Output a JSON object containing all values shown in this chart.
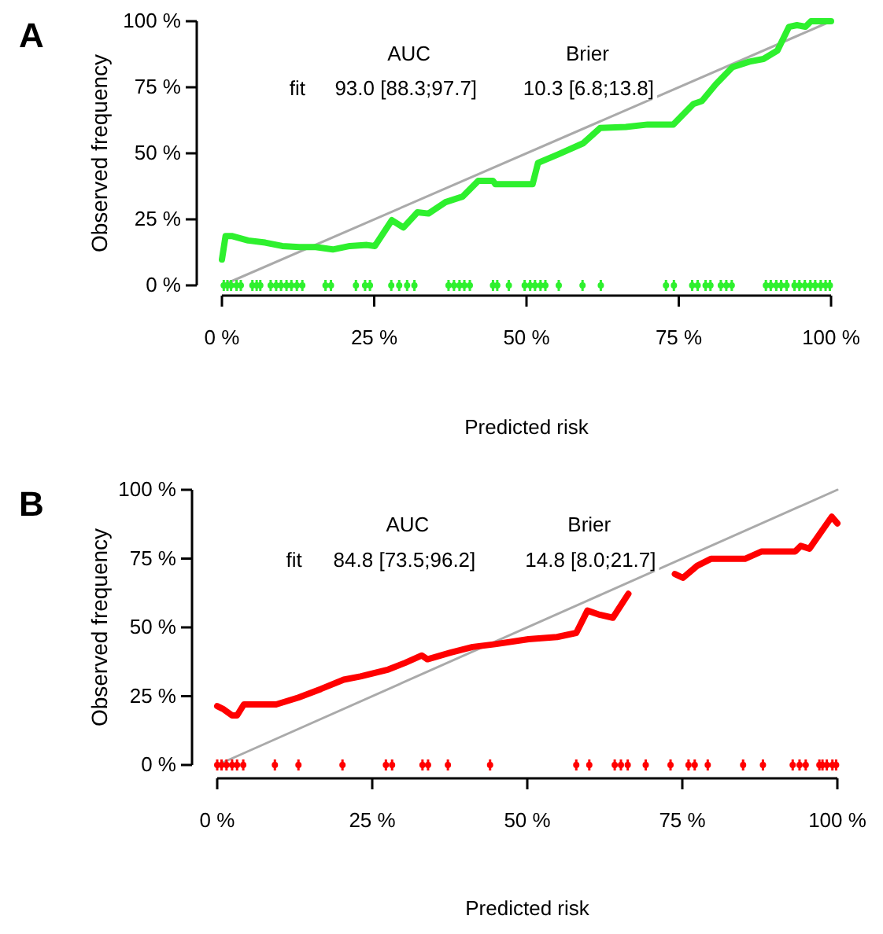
{
  "chart_data": [
    {
      "type": "line",
      "title": "A",
      "xlabel": "Predicted risk",
      "ylabel": "Observed frequency",
      "xlim": [
        0,
        100
      ],
      "ylim": [
        0,
        100
      ],
      "xticks": [
        {
          "value": 0,
          "label": "0 %"
        },
        {
          "value": 25,
          "label": "25 %"
        },
        {
          "value": 50,
          "label": "50 %"
        },
        {
          "value": 75,
          "label": "75 %"
        },
        {
          "value": 100,
          "label": "100 %"
        }
      ],
      "yticks": [
        {
          "value": 0,
          "label": "0 %"
        },
        {
          "value": 25,
          "label": "25 %"
        },
        {
          "value": 50,
          "label": "50 %"
        },
        {
          "value": 75,
          "label": "75 %"
        },
        {
          "value": 100,
          "label": "100 %"
        }
      ],
      "annotations": [
        "AUC",
        "Brier",
        "fit",
        "93.0 [88.3;97.7]",
        "10.3 [6.8;13.8]"
      ],
      "series": [
        {
          "type": "line",
          "color": "#aaaaaa",
          "x": [
            0,
            100
          ],
          "values": [
            0,
            100
          ]
        },
        {
          "type": "line",
          "color": "#2ef02e",
          "x": [
            0,
            0.6,
            1.6,
            4.3,
            7.1,
            9.9,
            12.7,
            15.4,
            18.2,
            21,
            23.8,
            25.1,
            27.9,
            29.8,
            32.1,
            33.9,
            36.7,
            39.5,
            42.1,
            44.5,
            44.9,
            51,
            51.9,
            55.2,
            59.3,
            62.1,
            66.3,
            69.9,
            74.1,
            77.4,
            78.8,
            81.1,
            83.8,
            86.6,
            88.9,
            91.2,
            93.1,
            94.4,
            95.8,
            96.7,
            100
          ],
          "values": [
            9.8,
            18.7,
            18.7,
            17,
            16.2,
            14.9,
            14.5,
            14.5,
            13.6,
            14.9,
            15.3,
            14.9,
            24.7,
            21.9,
            27.7,
            27.2,
            31.5,
            33.6,
            39.6,
            39.6,
            38.3,
            38.3,
            46.4,
            49.6,
            53.8,
            59.6,
            60,
            60.9,
            60.9,
            68.7,
            69.8,
            76.2,
            82.6,
            84.7,
            85.7,
            88.9,
            97.9,
            98.5,
            97.9,
            100,
            100
          ]
        },
        {
          "type": "scatter",
          "color": "#2ef02e",
          "x": [
            0.3,
            0.9,
            1.5,
            2.4,
            3.1,
            5.0,
            5.7,
            6.3,
            8.0,
            8.9,
            9.7,
            10.6,
            11.4,
            12.3,
            13.2,
            17.0,
            17.9,
            22.0,
            23.5,
            24.3,
            27.8,
            29.1,
            30.4,
            31.6,
            37.2,
            38.1,
            39.0,
            39.8,
            40.7,
            44.5,
            45.2,
            47.1,
            49.7,
            50.6,
            51.4,
            52.3,
            53.1,
            55.3,
            59.2,
            62.2,
            72.9,
            74.2,
            77.2,
            78.1,
            79.4,
            80.2,
            81.9,
            82.8,
            83.7,
            89.3,
            90.1,
            91.0,
            91.8,
            92.7,
            94.0,
            94.8,
            95.7,
            96.6,
            97.4,
            98.3,
            99.1,
            99.8
          ],
          "values": [
            0,
            0,
            0,
            0,
            0,
            0,
            0,
            0,
            0,
            0,
            0,
            0,
            0,
            0,
            0,
            0,
            0,
            0,
            0,
            0,
            0,
            0,
            0,
            0,
            0,
            0,
            0,
            0,
            0,
            0,
            0,
            0,
            0,
            0,
            0,
            0,
            0,
            0,
            0,
            0,
            0,
            0,
            0,
            0,
            0,
            0,
            0,
            0,
            0,
            0,
            0,
            0,
            0,
            0,
            0,
            0,
            0,
            0,
            0,
            0,
            0,
            0
          ]
        }
      ]
    },
    {
      "type": "line",
      "title": "B",
      "xlabel": "Predicted risk",
      "ylabel": "Observed frequency",
      "xlim": [
        0,
        100
      ],
      "ylim": [
        0,
        100
      ],
      "xticks": [
        {
          "value": 0,
          "label": "0 %"
        },
        {
          "value": 25,
          "label": "25 %"
        },
        {
          "value": 50,
          "label": "50 %"
        },
        {
          "value": 75,
          "label": "75 %"
        },
        {
          "value": 100,
          "label": "100 %"
        }
      ],
      "yticks": [
        {
          "value": 0,
          "label": "0 %"
        },
        {
          "value": 25,
          "label": "25 %"
        },
        {
          "value": 50,
          "label": "50 %"
        },
        {
          "value": 75,
          "label": "75 %"
        },
        {
          "value": 100,
          "label": "100 %"
        }
      ],
      "annotations": [
        "AUC",
        "Brier",
        "fit",
        "84.8 [73.5;96.2]",
        "14.8 [8.0;21.7]"
      ],
      "series": [
        {
          "type": "line",
          "color": "#aaaaaa",
          "x": [
            0,
            100
          ],
          "values": [
            0,
            100
          ]
        },
        {
          "type": "line",
          "color": "#ff0000",
          "x": [
            0,
            0.9,
            2.4,
            3.2,
            4.3,
            9.5,
            13.1,
            16.7,
            20.4,
            23.1,
            27.6,
            30.3,
            33,
            33.9,
            37.6,
            41.2,
            44.8,
            50.2,
            54.8,
            57.9,
            59.7,
            61.5,
            63.8,
            66.3,
            70,
            73.8,
            75.1,
            77.4,
            79.6,
            85.1,
            87.8,
            93.2,
            94.1,
            95.5,
            99.1,
            100
          ],
          "values": [
            21.4,
            20.4,
            18,
            18,
            22,
            22,
            24.5,
            27.6,
            31,
            32.2,
            34.7,
            37.1,
            39.8,
            38.4,
            40.8,
            42.9,
            43.9,
            45.7,
            46.5,
            48,
            56.1,
            54.7,
            53.5,
            62.2,
            null,
            69.4,
            68,
            72.4,
            74.9,
            74.9,
            77.6,
            77.6,
            79.6,
            78.6,
            90.2,
            87.8
          ]
        },
        {
          "type": "scatter",
          "color": "#ff0000",
          "x": [
            0,
            0.7,
            1.5,
            2.4,
            3.2,
            4.2,
            9.3,
            13.1,
            20.2,
            27.2,
            28.2,
            33.1,
            34.0,
            37.2,
            44.0,
            57.9,
            60.0,
            64.1,
            65.1,
            66.2,
            69.1,
            73.1,
            76.0,
            77.0,
            79.1,
            84.8,
            88.0,
            92.8,
            93.9,
            94.9,
            97.1,
            97.6,
            98.3,
            99.2,
            99.8
          ],
          "values": [
            0,
            0,
            0,
            0,
            0,
            0,
            0,
            0,
            0,
            0,
            0,
            0,
            0,
            0,
            0,
            0,
            0,
            0,
            0,
            0,
            0,
            0,
            0,
            0,
            0,
            0,
            0,
            0,
            0,
            0,
            0,
            0,
            0,
            0,
            0
          ]
        }
      ]
    }
  ]
}
